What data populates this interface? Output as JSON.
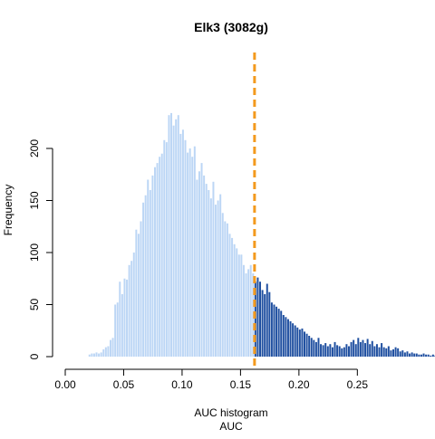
{
  "chart_data": {
    "type": "bar",
    "title": "Elk3 (3082g)",
    "ylabel": "Frequency",
    "xlabel": "AUC histogram",
    "xlabel2": "AUC",
    "xlim": [
      0.0,
      0.28
    ],
    "ylim": [
      0,
      240
    ],
    "x_ticks": [
      "0.00",
      "0.05",
      "0.10",
      "0.15",
      "0.20",
      "0.25"
    ],
    "y_ticks": [
      "0",
      "50",
      "100",
      "150",
      "200"
    ],
    "bin_start": 0.02,
    "bin_width": 0.002,
    "threshold": 0.162,
    "colors": {
      "below_threshold": "#bcd6f5",
      "above_threshold": "#1f4fa0",
      "threshold_line": "#f39a1e",
      "axis": "#000000"
    },
    "values": [
      2,
      3,
      3,
      4,
      3,
      4,
      7,
      9,
      10,
      16,
      18,
      50,
      52,
      72,
      60,
      75,
      74,
      88,
      92,
      100,
      122,
      118,
      130,
      148,
      155,
      170,
      160,
      174,
      182,
      186,
      192,
      195,
      208,
      206,
      232,
      234,
      222,
      228,
      232,
      214,
      218,
      208,
      196,
      200,
      192,
      202,
      170,
      178,
      186,
      174,
      166,
      160,
      152,
      168,
      146,
      150,
      156,
      138,
      130,
      128,
      118,
      114,
      108,
      104,
      98,
      98,
      88,
      80,
      84,
      88,
      80,
      72,
      76,
      72,
      64,
      60,
      70,
      62,
      52,
      50,
      48,
      46,
      44,
      40,
      38,
      36,
      34,
      32,
      30,
      28,
      26,
      27,
      24,
      22,
      20,
      18,
      16,
      14,
      18,
      12,
      11,
      13,
      10,
      12,
      9,
      14,
      11,
      10,
      8,
      9,
      12,
      10,
      14,
      16,
      12,
      18,
      14,
      16,
      13,
      17,
      12,
      15,
      10,
      12,
      9,
      13,
      9,
      8,
      10,
      6,
      7,
      9,
      8,
      5,
      6,
      4,
      5,
      3,
      4,
      3,
      3,
      2,
      2,
      3,
      2,
      2,
      1,
      2,
      1,
      1,
      1,
      1,
      1,
      2,
      1,
      1,
      1,
      0,
      0,
      0,
      0,
      0,
      0,
      0,
      0,
      0,
      1
    ]
  }
}
